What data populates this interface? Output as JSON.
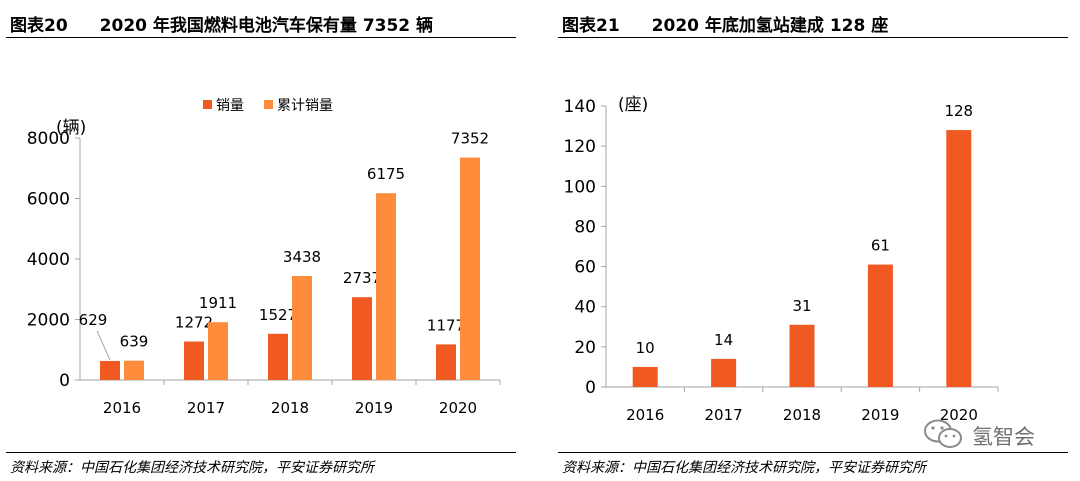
{
  "charts": [
    {
      "figure_label": "图表20",
      "title": "2020 年我国燃料电池汽车保有量 7352 辆",
      "source": "资料来源：中国石化集团经济技术研究院，平安证券研究所"
    },
    {
      "figure_label": "图表21",
      "title": "2020 年底加氢站建成 128 座",
      "source": "资料来源：中国石化集团经济技术研究院，平安证券研究所"
    }
  ],
  "watermark": "氢智会",
  "colors": {
    "sales": "#f05a22",
    "cumulative": "#ff8c3a",
    "axis": "#a6a6a6",
    "leader": "#a6a6a6"
  },
  "chart_data": [
    {
      "type": "bar",
      "title": "2020 年我国燃料电池汽车保有量 7352 辆",
      "unit_label": "(辆)",
      "categories": [
        "2016",
        "2017",
        "2018",
        "2019",
        "2020"
      ],
      "series": [
        {
          "name": "销量",
          "values": [
            629,
            1272,
            1527,
            2737,
            1177
          ]
        },
        {
          "name": "累计销量",
          "values": [
            639,
            1911,
            3438,
            6175,
            7352
          ]
        }
      ],
      "ylim": [
        0,
        8000
      ],
      "yticks": [
        0,
        2000,
        4000,
        6000,
        8000
      ],
      "legend": "top-center",
      "grid": false
    },
    {
      "type": "bar",
      "title": "2020 年底加氢站建成 128 座",
      "unit_label": "(座)",
      "categories": [
        "2016",
        "2017",
        "2018",
        "2019",
        "2020"
      ],
      "series": [
        {
          "values": [
            10,
            14,
            31,
            61,
            128
          ]
        }
      ],
      "ylim": [
        0,
        140
      ],
      "yticks": [
        0,
        20,
        40,
        60,
        80,
        100,
        120,
        140
      ],
      "grid": false
    }
  ]
}
